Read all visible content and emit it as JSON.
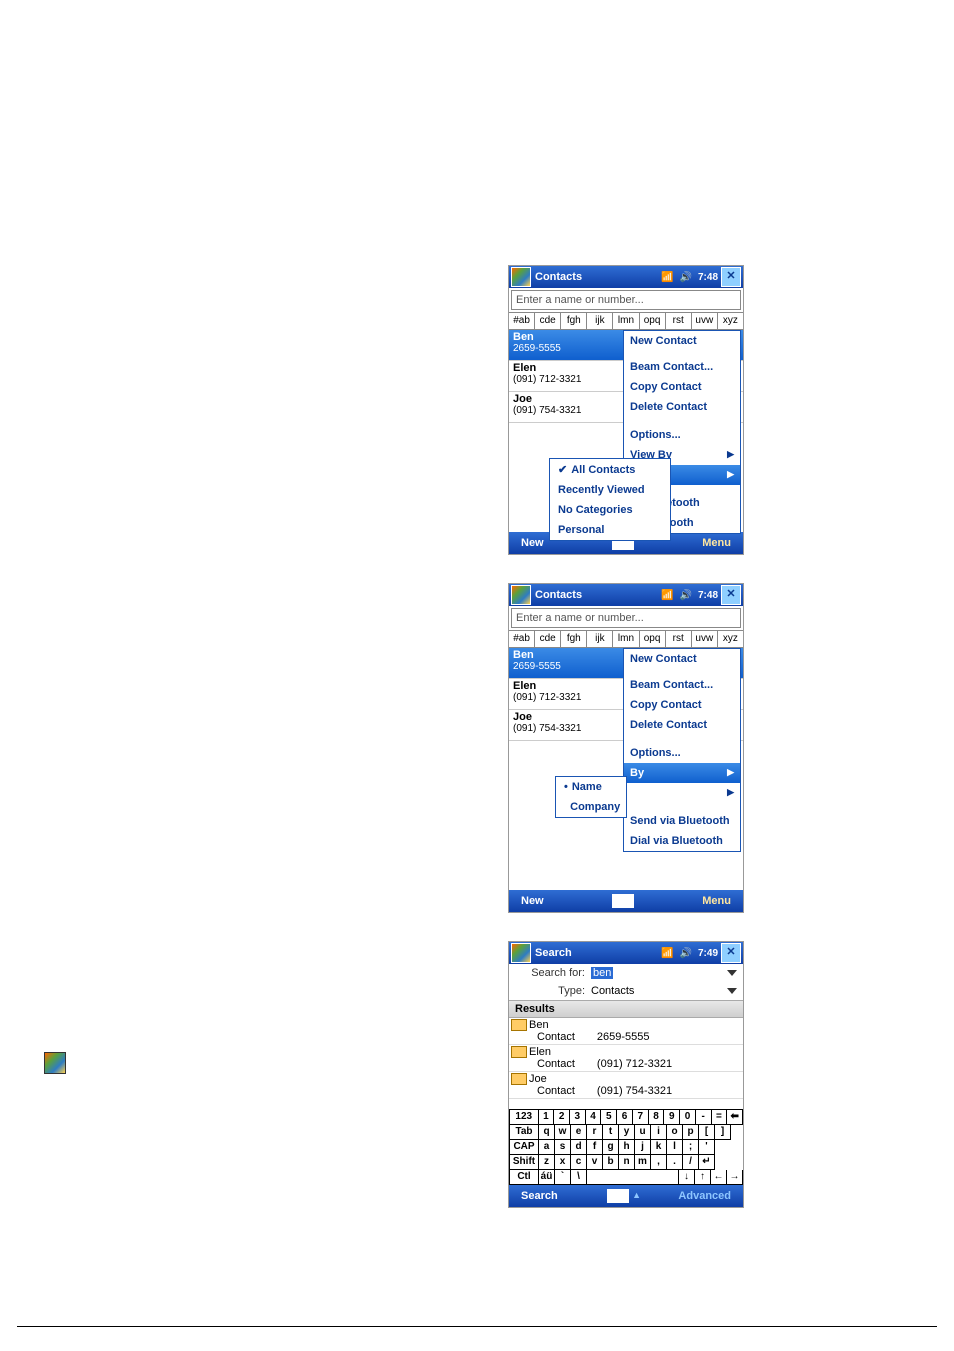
{
  "colors": {
    "headerA": "#2f6dd3",
    "headerB": "#0f3ea6",
    "link": "#0b3a90"
  },
  "common": {
    "searchPlaceholder": "Enter a name or number...",
    "alphatabs": [
      "#ab",
      "cde",
      "fgh",
      "ijk",
      "lmn",
      "opq",
      "rst",
      "uvw",
      "xyz"
    ],
    "menuItems": {
      "newContact": "New Contact",
      "beam": "Beam Contact...",
      "copy": "Copy Contact",
      "del": "Delete Contact",
      "options": "Options...",
      "viewBy": "View By"
    },
    "soft": {
      "new": "New",
      "menu": "Menu"
    },
    "contacts": [
      {
        "name": "Ben",
        "phone": "2659-5555",
        "type": "w",
        "sel": true
      },
      {
        "name": "Elen",
        "phone": "(091) 712-3321",
        "type": "m",
        "sel": false
      },
      {
        "name": "Joe",
        "phone": "(091) 754-3321",
        "type": "m",
        "sel": false
      }
    ]
  },
  "shot1": {
    "title": "Contacts",
    "time": "7:48",
    "filter": {
      "all": "All Contacts",
      "recent": "Recently Viewed",
      "nocat": "No Categories",
      "personal": "Personal"
    },
    "bt": {
      "send": "via Bluetooth",
      "dial": "ia Bluetooth"
    }
  },
  "shot2": {
    "title": "Contacts",
    "time": "7:48",
    "sort": {
      "name": "Name",
      "company": "Company"
    },
    "by": "By",
    "bt": {
      "send": "Send via Bluetooth",
      "dial": "Dial via Bluetooth"
    }
  },
  "shot3": {
    "title": "Search",
    "time": "7:49",
    "labels": {
      "searchFor": "Search for:",
      "type": "Type:",
      "results": "Results"
    },
    "searchValue": "ben",
    "typeValue": "Contacts",
    "results": [
      {
        "name": "Ben",
        "kind": "Contact",
        "num": "2659-5555"
      },
      {
        "name": "Elen",
        "kind": "Contact",
        "num": "(091) 712-3321"
      },
      {
        "name": "Joe",
        "kind": "Contact",
        "num": "(091) 754-3321"
      }
    ],
    "soft": {
      "search": "Search",
      "advanced": "Advanced"
    },
    "kbd": {
      "r1": [
        "123",
        "1",
        "2",
        "3",
        "4",
        "5",
        "6",
        "7",
        "8",
        "9",
        "0",
        "-",
        "=",
        "⬅"
      ],
      "r2": [
        "Tab",
        "q",
        "w",
        "e",
        "r",
        "t",
        "y",
        "u",
        "i",
        "o",
        "p",
        "[",
        "]"
      ],
      "r3": [
        "CAP",
        "a",
        "s",
        "d",
        "f",
        "g",
        "h",
        "j",
        "k",
        "l",
        ";",
        "'"
      ],
      "r4": [
        "Shift",
        "z",
        "x",
        "c",
        "v",
        "b",
        "n",
        "m",
        ",",
        ".",
        "/",
        "↵"
      ],
      "r5": [
        "Ctl",
        "áü",
        "`",
        "\\",
        " ",
        "↓",
        "↑",
        "←",
        "→"
      ]
    }
  }
}
